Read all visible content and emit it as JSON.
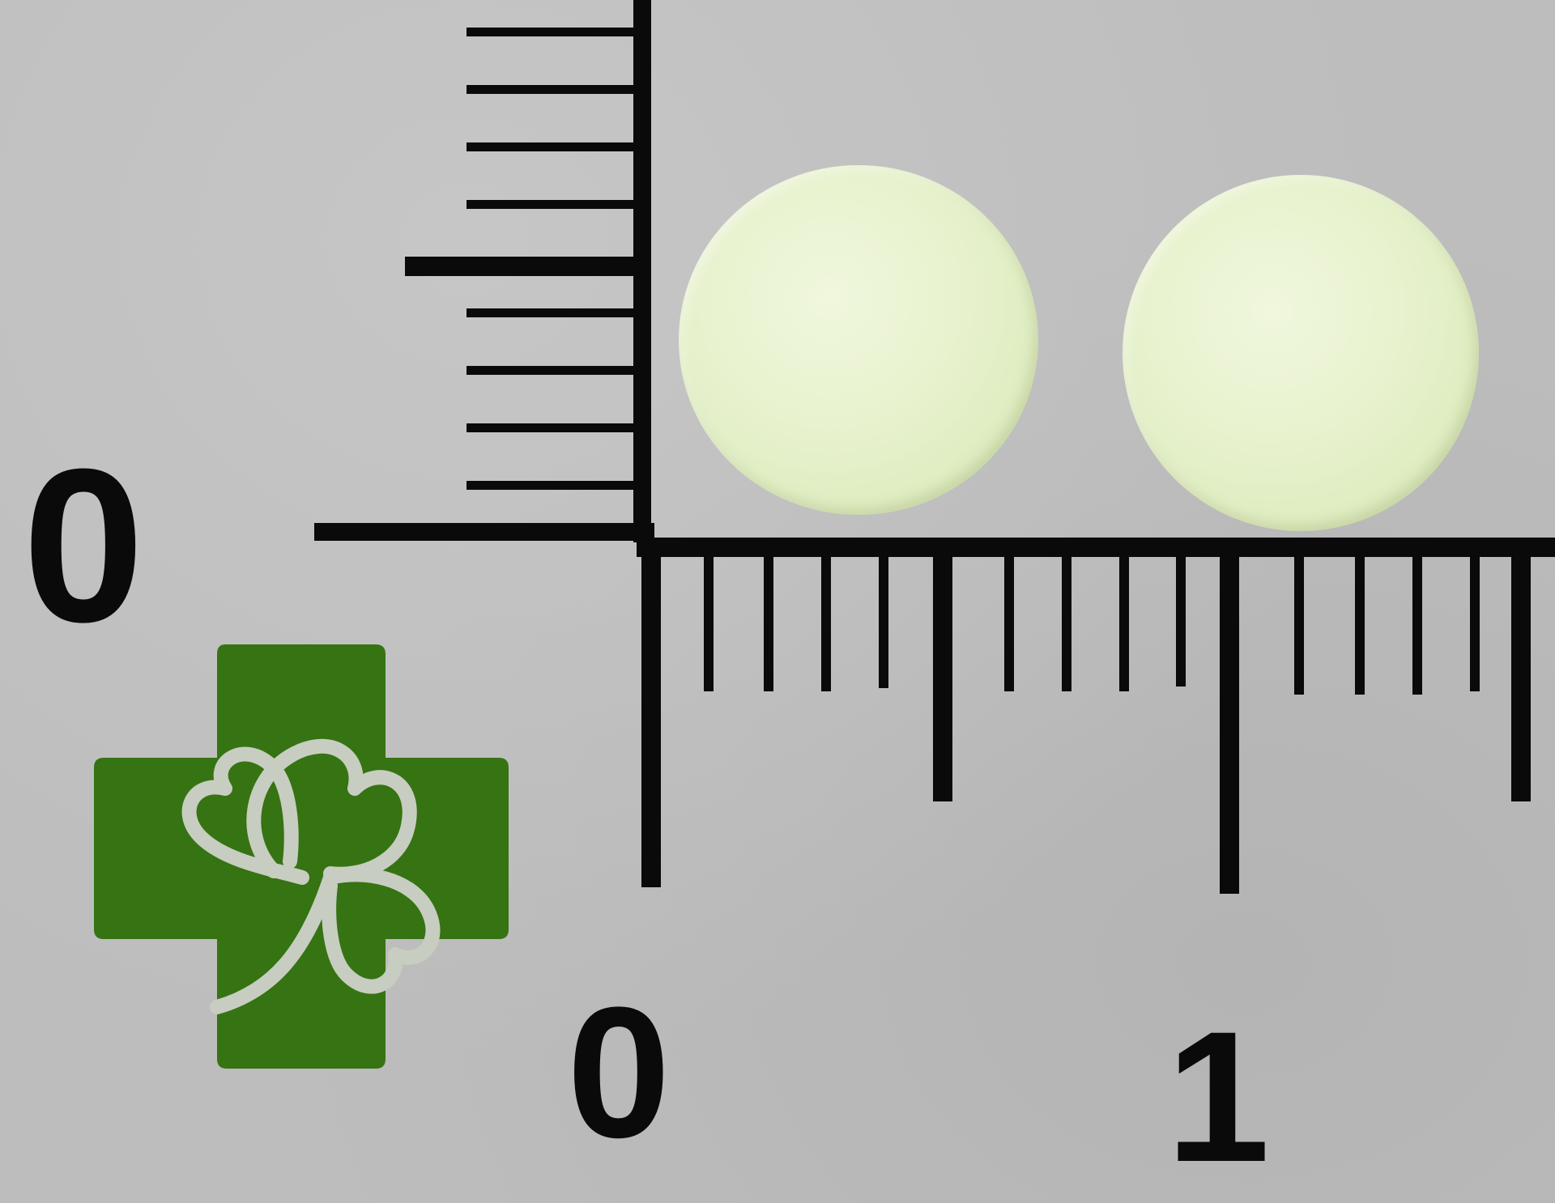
{
  "ruler": {
    "vertical_zero_label": "0",
    "horizontal_labels": {
      "zero": "0",
      "one": "1"
    },
    "color": "#0a0a0a"
  },
  "tablets": {
    "count": 2,
    "color": "#e6f1cc"
  },
  "logo": {
    "icon": "shamrock-cross-icon",
    "color": "#367312"
  },
  "background_color": "#bdbdbd"
}
